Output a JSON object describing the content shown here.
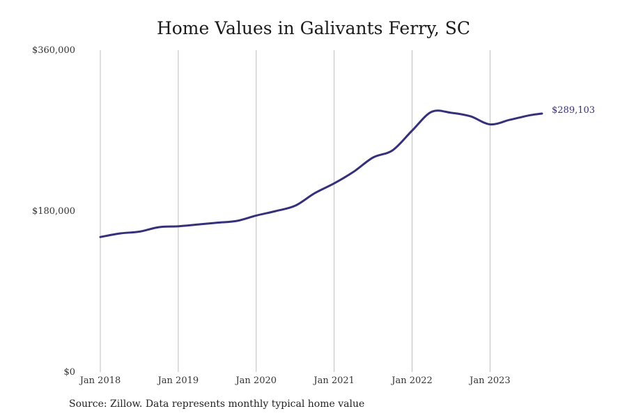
{
  "chart_data": {
    "type": "line",
    "title": "Home Values in Galivants Ferry, SC",
    "source": "Source: Zillow. Data represents monthly typical home value",
    "color": "#35307a",
    "ylim": [
      0,
      360000
    ],
    "xlim": [
      "2018-01",
      "2023-09"
    ],
    "y_ticks": [
      {
        "value": 0,
        "label": "$0"
      },
      {
        "value": 180000,
        "label": "$180,000"
      },
      {
        "value": 360000,
        "label": "$360,000"
      }
    ],
    "x_ticks": [
      {
        "value": "2018-01",
        "label": "Jan 2018"
      },
      {
        "value": "2019-01",
        "label": "Jan 2019"
      },
      {
        "value": "2020-01",
        "label": "Jan 2020"
      },
      {
        "value": "2021-01",
        "label": "Jan 2021"
      },
      {
        "value": "2022-01",
        "label": "Jan 2022"
      },
      {
        "value": "2023-01",
        "label": "Jan 2023"
      }
    ],
    "grid": {
      "vertical": true,
      "horizontal": false
    },
    "end_label": "$289,103",
    "series": [
      {
        "x": [
          "2018-01",
          "2018-04",
          "2018-07",
          "2018-10",
          "2019-01",
          "2019-04",
          "2019-07",
          "2019-10",
          "2020-01",
          "2020-04",
          "2020-07",
          "2020-10",
          "2021-01",
          "2021-04",
          "2021-07",
          "2021-10",
          "2022-01",
          "2022-04",
          "2022-07",
          "2022-10",
          "2023-01",
          "2023-04",
          "2023-07",
          "2023-09"
        ],
        "values": [
          151000,
          155000,
          157000,
          162000,
          163000,
          165000,
          167000,
          169000,
          175000,
          180000,
          186000,
          200000,
          211000,
          224000,
          240000,
          248000,
          270000,
          291000,
          290000,
          286000,
          277000,
          282000,
          287000,
          289103
        ]
      }
    ]
  }
}
